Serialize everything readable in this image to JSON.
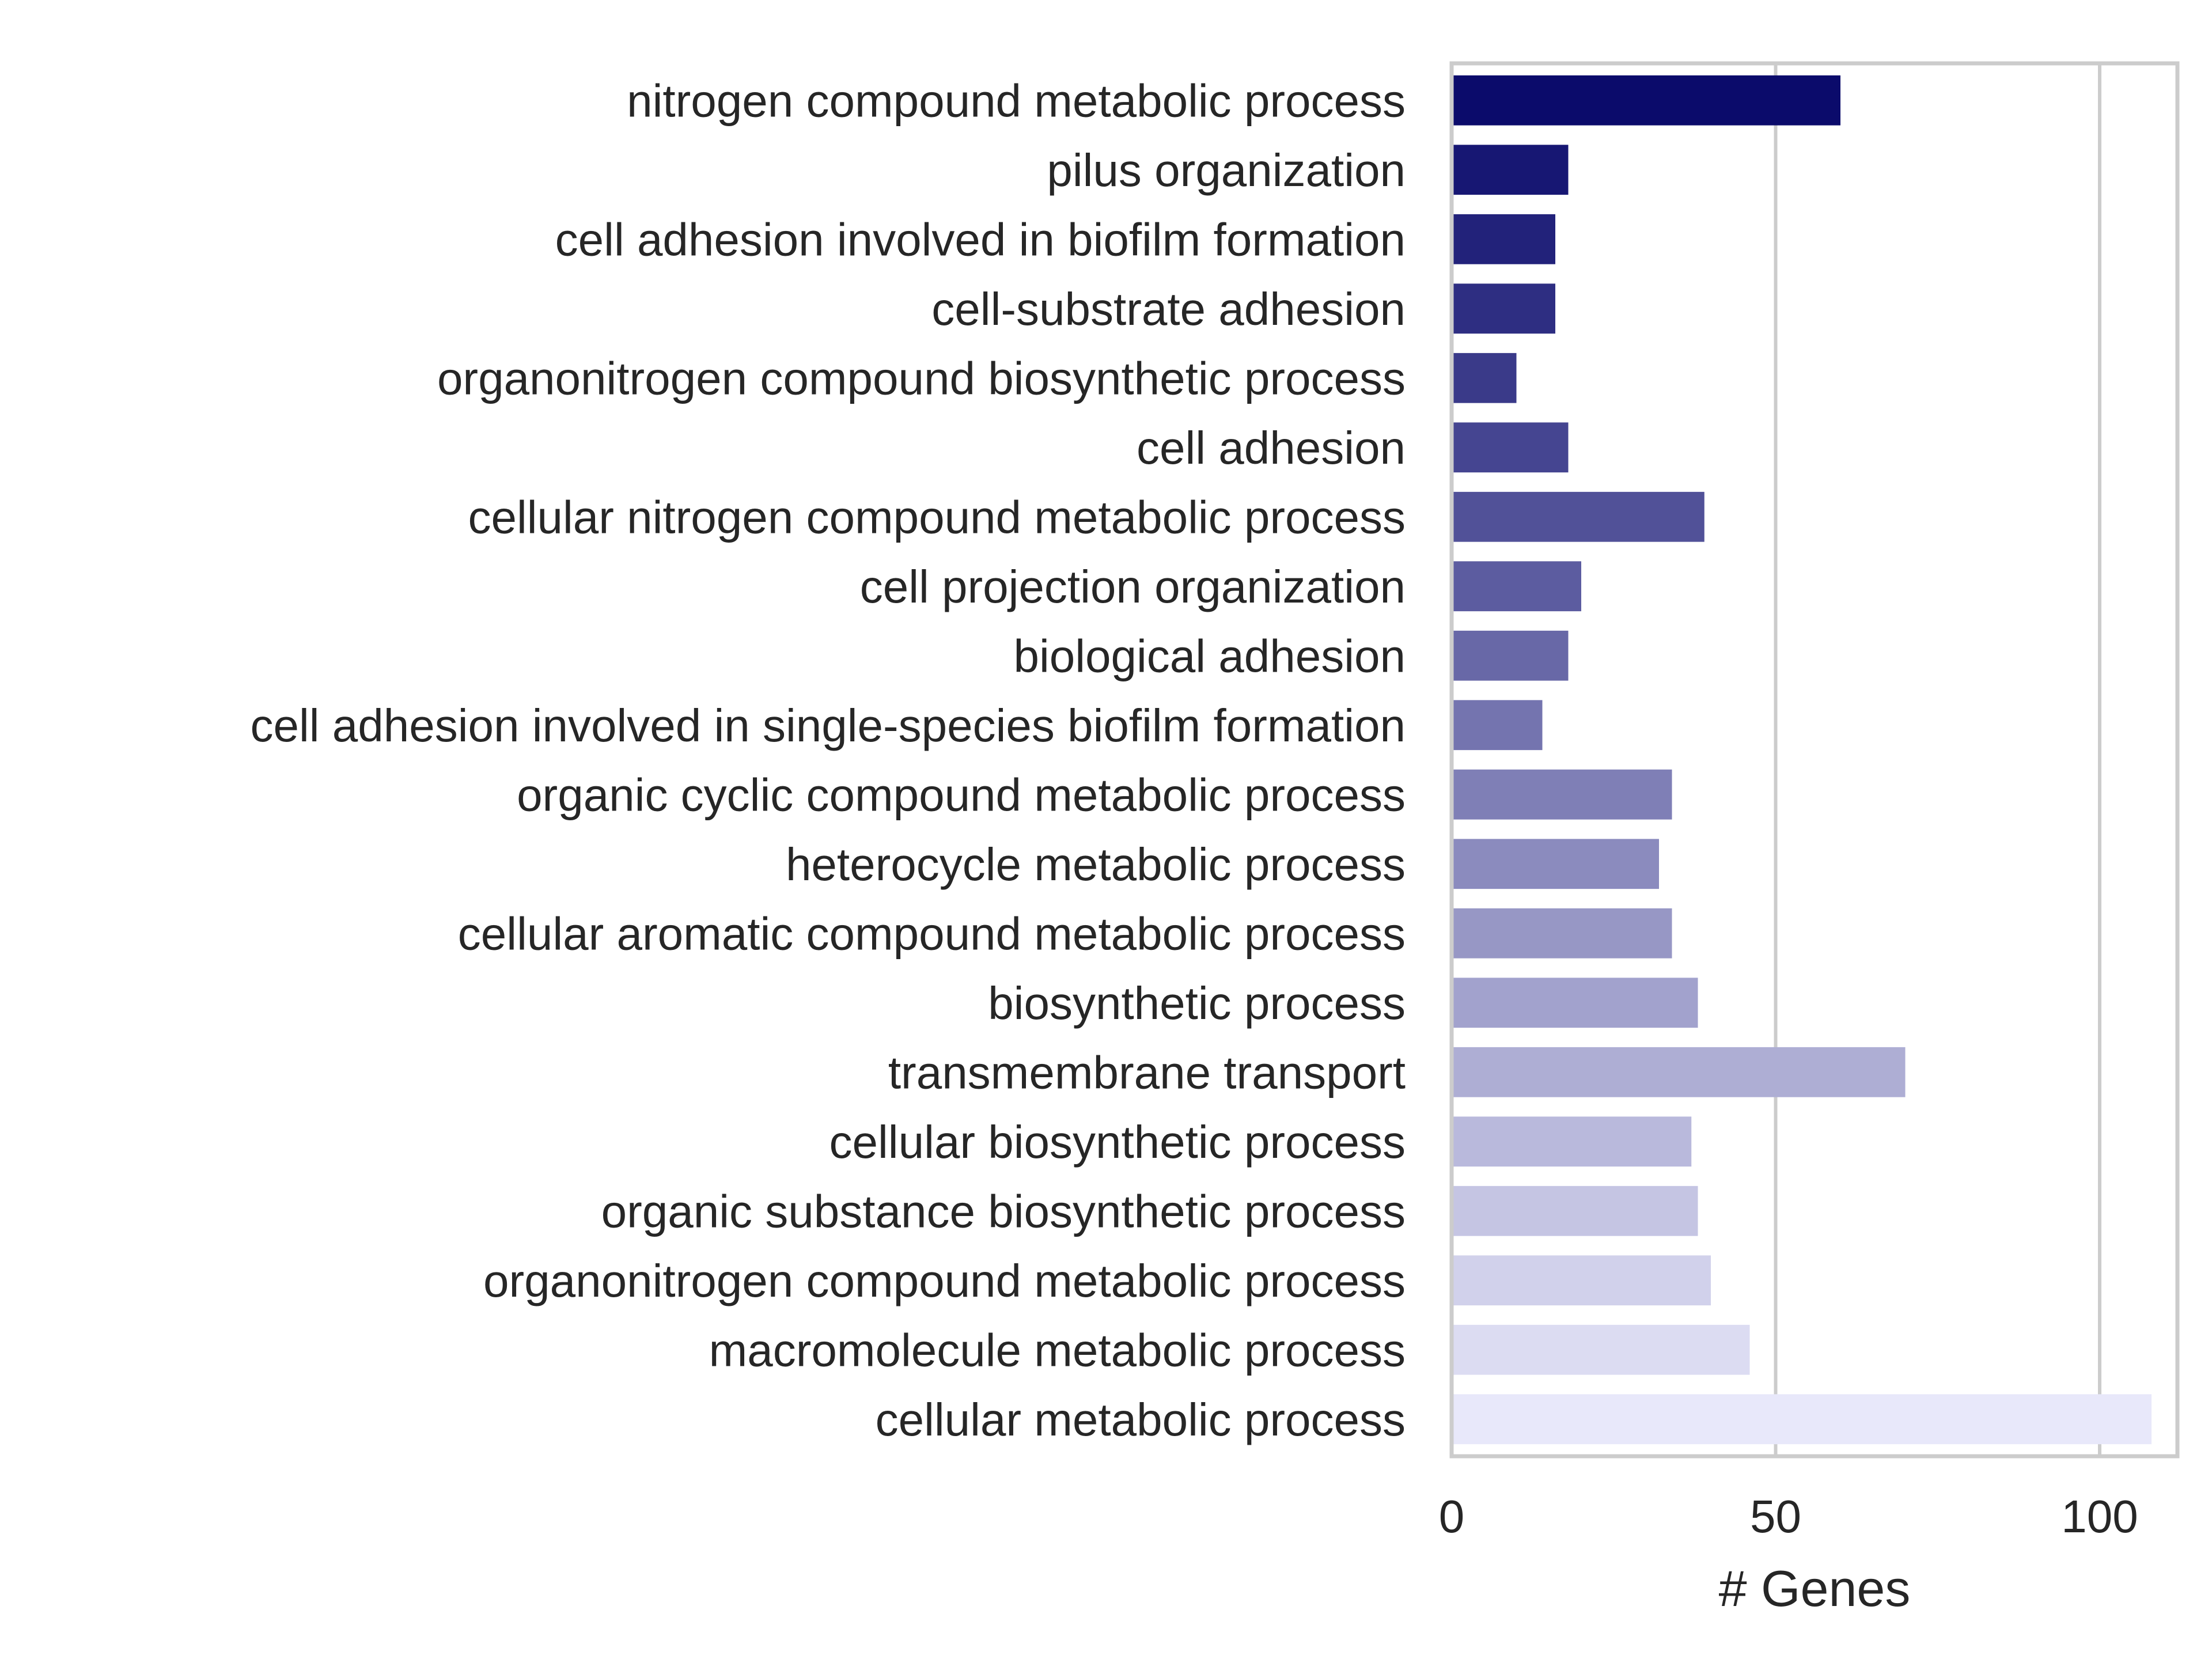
{
  "chart_data": {
    "type": "bar",
    "orientation": "horizontal",
    "title": "",
    "xlabel": "# Genes",
    "ylabel": "",
    "xlim": [
      0,
      112
    ],
    "xticks": [
      0,
      50,
      100
    ],
    "xtick_labels": [
      "0",
      "50",
      "100"
    ],
    "grid": "vertical",
    "legend": "none",
    "categories": [
      "nitrogen compound metabolic process",
      "pilus organization",
      "cell adhesion involved in biofilm formation",
      "cell-substrate adhesion",
      "organonitrogen compound biosynthetic process",
      "cell adhesion",
      "cellular nitrogen compound metabolic process",
      "cell projection organization",
      "biological adhesion",
      "cell adhesion involved in single-species biofilm formation",
      "organic cyclic compound metabolic process",
      "heterocycle metabolic process",
      "cellular aromatic compound metabolic process",
      "biosynthetic process",
      "transmembrane transport",
      "cellular biosynthetic process",
      "organic substance biosynthetic process",
      "organonitrogen compound metabolic process",
      "macromolecule metabolic process",
      "cellular metabolic process"
    ],
    "values": [
      60,
      18,
      16,
      16,
      10,
      18,
      39,
      20,
      18,
      14,
      34,
      32,
      34,
      38,
      70,
      37,
      38,
      40,
      46,
      108
    ],
    "colors": {
      "bar_dark": "#0b0b6b",
      "bar_light": "#e8e8fa",
      "grid": "#cccccc",
      "frame": "#cccccc",
      "text": "#262626"
    }
  }
}
